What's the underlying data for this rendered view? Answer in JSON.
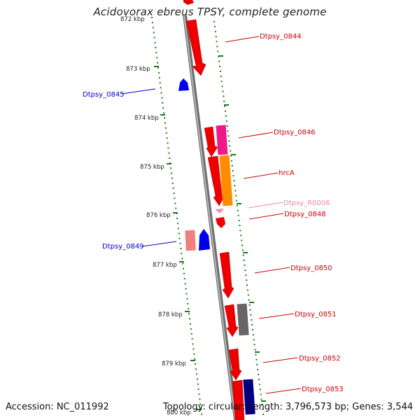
{
  "title": "Acidovorax ebreus TPSY, complete genome",
  "accession": "Accession: NC_011992",
  "topology": "Topology: circular; Length: 3,796,573 bp; Genes: 3,544",
  "colors": {
    "backbone": "#8c8c8c",
    "tick": "#1a7a1a",
    "forward_gene": "#ff0000",
    "reverse_gene": "#0000ee",
    "label_forward": "#cc0000",
    "label_reverse": "#0000cc"
  },
  "kbp_ticks": [
    {
      "label": "872 kbp"
    },
    {
      "label": "873 kbp"
    },
    {
      "label": "874 kbp"
    },
    {
      "label": "875 kbp"
    },
    {
      "label": "876 kbp"
    },
    {
      "label": "877 kbp"
    },
    {
      "label": "878 kbp"
    },
    {
      "label": "879 kbp"
    },
    {
      "label": "880 kbp"
    }
  ],
  "gene_labels": [
    {
      "text": "Dtpsy_0844",
      "color": "#cc0000"
    },
    {
      "text": "Dtpsy_0845",
      "color": "#0000cc"
    },
    {
      "text": "Dtpsy_0846",
      "color": "#cc0000"
    },
    {
      "text": "hrcA",
      "color": "#cc0000"
    },
    {
      "text": "Dtpsy_R0006",
      "color": "#f08aa0"
    },
    {
      "text": "Dtpsy_0848",
      "color": "#cc0000"
    },
    {
      "text": "Dtpsy_0849",
      "color": "#0000cc"
    },
    {
      "text": "Dtpsy_0850",
      "color": "#cc0000"
    },
    {
      "text": "Dtpsy_0851",
      "color": "#cc0000"
    },
    {
      "text": "Dtpsy_0852",
      "color": "#cc0000"
    },
    {
      "text": "Dtpsy_0853",
      "color": "#cc0000"
    }
  ]
}
